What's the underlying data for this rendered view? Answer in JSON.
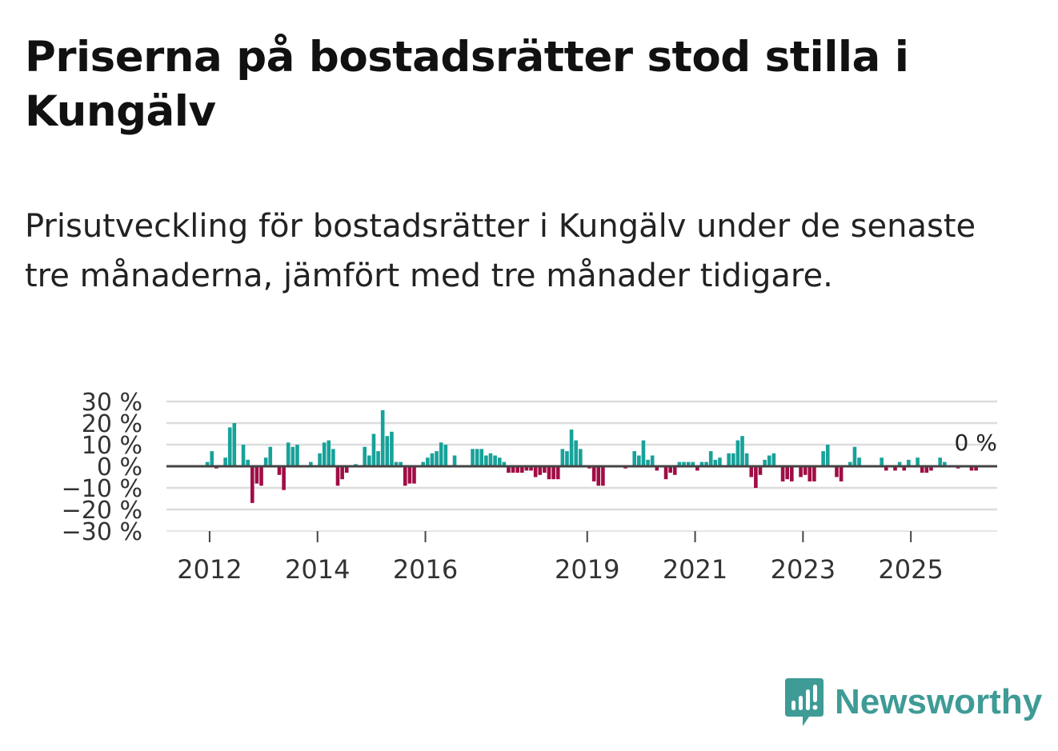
{
  "title": "Priserna på bostadsrätter stod stilla i Kungälv",
  "subtitle": "Prisutveckling för bostadsrätter i Kungälv under de senaste tre månaderna, jämfört med tre månader tidigare.",
  "brand": {
    "name": "Newsworthy",
    "icon": "newsworthy-logo-icon"
  },
  "colors": {
    "positive": "#17a29a",
    "negative": "#a00d45",
    "grid": "#dddddd",
    "zero_line": "#444444",
    "brand": "#3e9b95"
  },
  "chart_data": {
    "type": "bar",
    "title": "Priserna på bostadsrätter stod stilla i Kungälv",
    "xlabel": "",
    "ylabel": "",
    "unit": "%",
    "ylim": [
      -30,
      30
    ],
    "yticks": [
      30,
      20,
      10,
      0,
      -10,
      -20,
      -30
    ],
    "ytick_labels": [
      "30 %",
      "20 %",
      "10 %",
      "0 %",
      "−10 %",
      "−20 %",
      "−30 %"
    ],
    "xticks": [
      {
        "label": "2012",
        "year": 2012
      },
      {
        "label": "2014",
        "year": 2014
      },
      {
        "label": "2016",
        "year": 2016
      },
      {
        "label": "2019",
        "year": 2019
      },
      {
        "label": "2021",
        "year": 2021
      },
      {
        "label": "2023",
        "year": 2023
      },
      {
        "label": "2025",
        "year": 2025
      }
    ],
    "x_start": 2011.2,
    "x_end": 2026.6,
    "grid": true,
    "annotation": {
      "text": "0 %",
      "value": 0,
      "position": "last bar"
    },
    "series": [
      {
        "name": "Prisutveckling",
        "start": "2011-11",
        "values": [
          0,
          2,
          7,
          -1,
          0,
          4,
          18,
          20,
          0,
          10,
          3,
          -17,
          -8,
          -9,
          4,
          9,
          0,
          -4,
          -11,
          11,
          9,
          10,
          0,
          0,
          2,
          0,
          6,
          11,
          12,
          8,
          -9,
          -6,
          -3,
          0,
          1,
          0,
          9,
          5,
          15,
          7,
          26,
          14,
          16,
          2,
          2,
          -9,
          -8,
          -8,
          0,
          2,
          4,
          6,
          7,
          11,
          10,
          0,
          5,
          0,
          0,
          0,
          8,
          8,
          8,
          5,
          6,
          5,
          4,
          2,
          -3,
          -3,
          -3,
          -3,
          -2,
          -2,
          -5,
          -4,
          -3,
          -6,
          -6,
          -6,
          8,
          7,
          17,
          12,
          8,
          0,
          -1,
          -7,
          -9,
          -9,
          0,
          0,
          0,
          0,
          -1,
          0,
          7,
          5,
          12,
          3,
          5,
          -2,
          0,
          -6,
          -3,
          -4,
          2,
          2,
          2,
          2,
          -2,
          2,
          2,
          7,
          3,
          4,
          0,
          6,
          6,
          12,
          14,
          6,
          -5,
          -10,
          -4,
          3,
          5,
          6,
          0,
          -7,
          -6,
          -7,
          0,
          -5,
          -4,
          -7,
          -7,
          0,
          7,
          10,
          0,
          -5,
          -7,
          0,
          2,
          9,
          4,
          0,
          0,
          0,
          0,
          4,
          -2,
          0,
          -2,
          2,
          -2,
          3,
          0,
          4,
          -3,
          -3,
          -2,
          0,
          4,
          2,
          0,
          0,
          -1,
          0,
          0,
          -2,
          -2,
          0
        ]
      }
    ]
  }
}
